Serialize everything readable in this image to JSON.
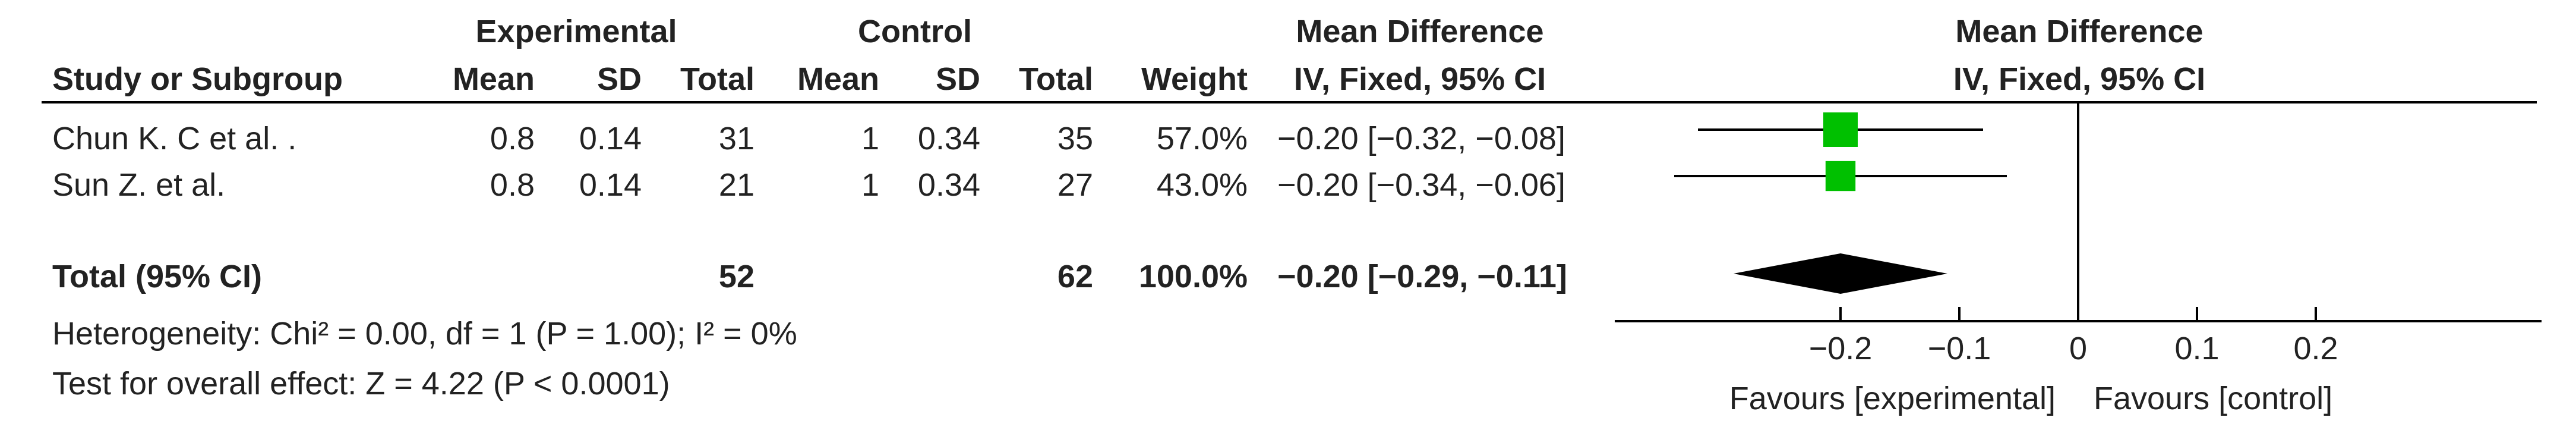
{
  "headers": {
    "experimental": "Experimental",
    "control": "Control",
    "md_group": "Mean Difference",
    "study": "Study or Subgroup",
    "mean": "Mean",
    "sd": "SD",
    "total": "Total",
    "weight": "Weight",
    "method": "IV, Fixed, 95% CI",
    "plot_group": "Mean Difference",
    "plot_method": "IV, Fixed, 95% CI"
  },
  "studies": [
    {
      "name": "Chun K. C et al. .",
      "exp_mean": "0.8",
      "exp_sd": "0.14",
      "exp_total": "31",
      "ctl_mean": "1",
      "ctl_sd": "0.34",
      "ctl_total": "35",
      "weight": "57.0%",
      "ci_text": "−0.20 [−0.32, −0.08]"
    },
    {
      "name": "Sun Z. et al.",
      "exp_mean": "0.8",
      "exp_sd": "0.14",
      "exp_total": "21",
      "ctl_mean": "1",
      "ctl_sd": "0.34",
      "ctl_total": "27",
      "weight": "43.0%",
      "ci_text": "−0.20 [−0.34, −0.06]"
    }
  ],
  "total": {
    "label": "Total (95% CI)",
    "exp_total": "52",
    "ctl_total": "62",
    "weight": "100.0%",
    "ci_text": "−0.20 [−0.29, −0.11]"
  },
  "heterogeneity": "Heterogeneity: Chi² = 0.00, df = 1 (P = 1.00); I² = 0%",
  "overall_effect": "Test for overall effect: Z = 4.22 (P < 0.0001)",
  "colors": {
    "square": "#00c000",
    "diamond": "#000000",
    "line": "#000000"
  },
  "chart_data": {
    "type": "forest",
    "xlim": [
      -0.4,
      0.4
    ],
    "ticks": [
      -0.2,
      -0.1,
      0,
      0.1,
      0.2
    ],
    "tick_labels": [
      "−0.2",
      "−0.1",
      "0",
      "0.1",
      "0.2"
    ],
    "favours_left": "Favours [experimental]",
    "favours_right": "Favours [control]",
    "studies": [
      {
        "estimate": -0.2,
        "lower": -0.32,
        "upper": -0.08,
        "weight": 57.0
      },
      {
        "estimate": -0.2,
        "lower": -0.34,
        "upper": -0.06,
        "weight": 43.0
      }
    ],
    "pooled": {
      "estimate": -0.2,
      "lower": -0.29,
      "upper": -0.11
    }
  }
}
